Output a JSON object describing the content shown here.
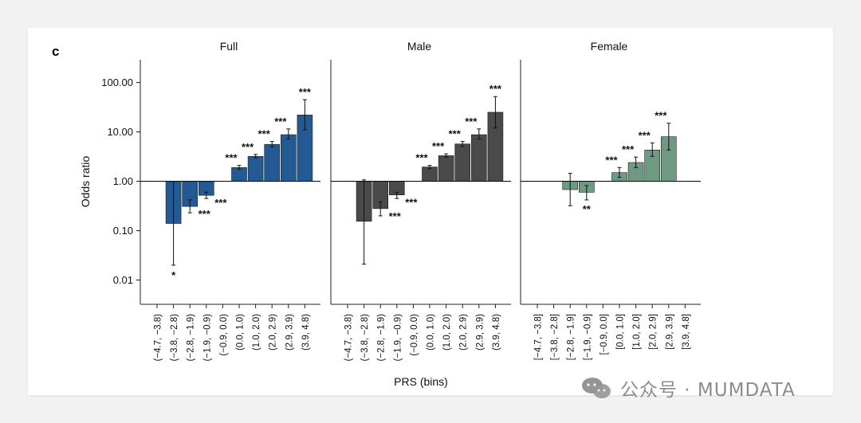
{
  "panel_label": "c",
  "y_axis_label": "Odds ratio",
  "x_axis_label": "PRS (bins)",
  "y_ticks": [
    "100.00",
    "10.00",
    "1.00",
    "0.10",
    "0.01"
  ],
  "watermark": "公众号 · MUMDATA",
  "colors": {
    "Full": "#235a94",
    "Male": "#4a4a4a",
    "Female": "#6e9a84"
  },
  "chart_data": [
    {
      "type": "bar",
      "title": "Full",
      "scale": "log",
      "baseline": 1.0,
      "ylabel": "Odds ratio",
      "xlabel": "PRS (bins)",
      "ylim": [
        0.003,
        300
      ],
      "categories": [
        "(−4.7, −3.8)",
        "(−3.8, −2.8)",
        "(−2.8, −1.9)",
        "(−1.9, −0.9)",
        "(−0.9, 0.0)",
        "(0.0, 1.0)",
        "(1.0, 2.0)",
        "(2.0, 2.9)",
        "(2.9, 3.9)",
        "(3.9, 4.8)"
      ],
      "values": [
        null,
        0.14,
        0.31,
        0.52,
        1.0,
        1.9,
        3.2,
        5.6,
        8.8,
        22
      ],
      "err_low": [
        null,
        0.02,
        0.23,
        0.45,
        1.0,
        1.75,
        3.0,
        5.0,
        7.2,
        11
      ],
      "err_high": [
        null,
        1.0,
        0.42,
        0.6,
        1.0,
        2.1,
        3.5,
        6.4,
        11.5,
        45
      ],
      "significance": [
        "",
        "*",
        "***",
        "***",
        "",
        "***",
        "***",
        "***",
        "***",
        "***"
      ]
    },
    {
      "type": "bar",
      "title": "Male",
      "scale": "log",
      "baseline": 1.0,
      "ylim": [
        0.003,
        300
      ],
      "categories": [
        "(−4.7, −3.8)",
        "(−3.8, −2.8)",
        "(−2.8, −1.9)",
        "(−1.9, −0.9)",
        "(−0.9, 0.0)",
        "(0.0, 1.0)",
        "(1.0, 2.0)",
        "(2.0, 2.9)",
        "(2.9, 3.9)",
        "(3.9, 4.8)"
      ],
      "values": [
        null,
        0.155,
        0.28,
        0.53,
        1.0,
        1.95,
        3.3,
        5.7,
        8.8,
        25
      ],
      "err_low": [
        null,
        0.021,
        0.2,
        0.45,
        1.0,
        1.8,
        3.1,
        5.1,
        7.2,
        12
      ],
      "err_high": [
        null,
        1.07,
        0.38,
        0.6,
        1.0,
        2.1,
        3.6,
        6.4,
        11.5,
        52
      ],
      "significance": [
        "",
        "",
        "***",
        "***",
        "",
        "***",
        "***",
        "***",
        "***",
        "***"
      ]
    },
    {
      "type": "bar",
      "title": "Female",
      "scale": "log",
      "baseline": 1.0,
      "ylim": [
        0.003,
        300
      ],
      "categories": [
        "[−4.7, −3.8]",
        "[−3.8, −2.8]",
        "[−2.8, −1.9]",
        "[−1.9, −0.9]",
        "[−0.9, 0.0]",
        "[0.0, 1.0]",
        "[1.0, 2.0]",
        "[2.0, 2.9]",
        "[2.9, 3.9]",
        "[3.9, 4.8]"
      ],
      "values": [
        null,
        null,
        0.68,
        0.6,
        1.0,
        1.5,
        2.4,
        4.3,
        8.0,
        null
      ],
      "err_low": [
        null,
        null,
        0.32,
        0.42,
        1.0,
        1.2,
        1.9,
        3.2,
        4.3,
        null
      ],
      "err_high": [
        null,
        null,
        1.45,
        0.82,
        1.0,
        1.9,
        3.1,
        6.0,
        15,
        null
      ],
      "significance": [
        "",
        "",
        "",
        "**",
        "",
        "***",
        "***",
        "***",
        "***",
        ""
      ]
    }
  ]
}
